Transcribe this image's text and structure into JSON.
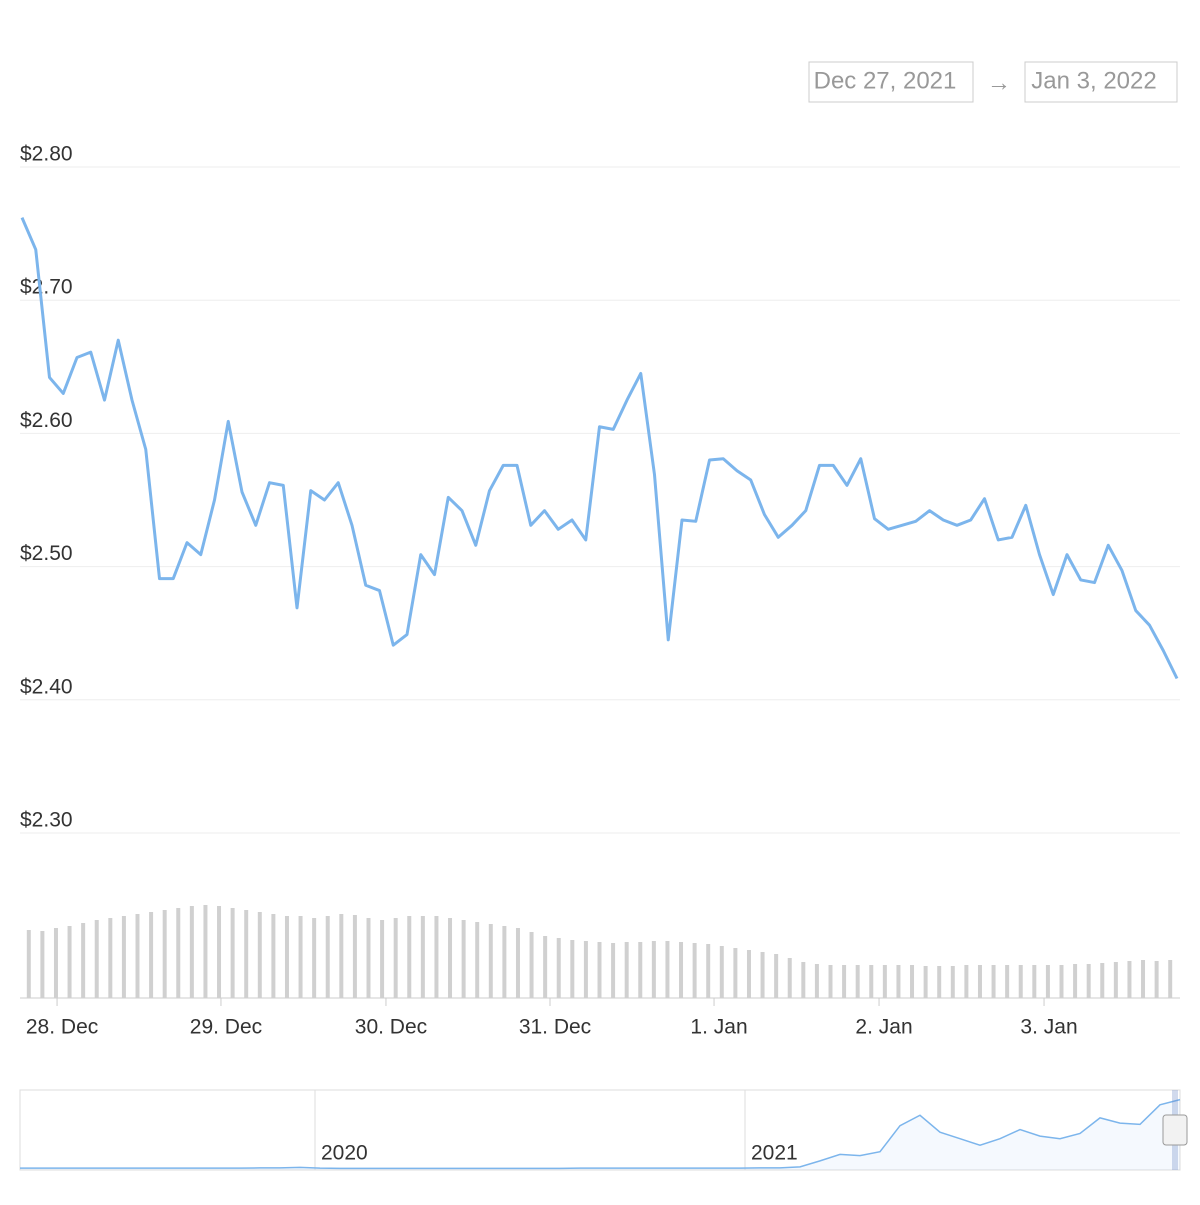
{
  "chart_data": {
    "type": "line",
    "date_from": "Dec 27, 2021",
    "date_arrow": "→",
    "date_to": "Jan 3, 2022",
    "series": [
      {
        "color": "#7cb5ec",
        "values": [
          2.762,
          2.738,
          2.642,
          2.63,
          2.657,
          2.661,
          2.625,
          2.67,
          2.625,
          2.588,
          2.491,
          2.491,
          2.518,
          2.509,
          2.55,
          2.609,
          2.556,
          2.531,
          2.563,
          2.561,
          2.469,
          2.557,
          2.55,
          2.563,
          2.531,
          2.486,
          2.482,
          2.441,
          2.449,
          2.509,
          2.494,
          2.552,
          2.542,
          2.516,
          2.557,
          2.576,
          2.576,
          2.531,
          2.542,
          2.528,
          2.535,
          2.52,
          2.605,
          2.603,
          2.625,
          2.645,
          2.569,
          2.445,
          2.535,
          2.534,
          2.58,
          2.581,
          2.572,
          2.565,
          2.539,
          2.522,
          2.531,
          2.542,
          2.576,
          2.576,
          2.561,
          2.581,
          2.536,
          2.528,
          2.531,
          2.534,
          2.542,
          2.535,
          2.531,
          2.535,
          2.551,
          2.52,
          2.522,
          2.546,
          2.509,
          2.479,
          2.509,
          2.49,
          2.488,
          2.516,
          2.497,
          2.467,
          2.456,
          2.437,
          2.416
        ]
      }
    ],
    "volumes": {
      "color": "#d0d0d0",
      "values": [
        68,
        67,
        70,
        72,
        75,
        78,
        80,
        82,
        84,
        86,
        88,
        90,
        92,
        93,
        92,
        90,
        88,
        86,
        84,
        82,
        82,
        80,
        82,
        84,
        83,
        80,
        78,
        80,
        82,
        82,
        82,
        80,
        78,
        76,
        74,
        72,
        70,
        66,
        62,
        60,
        58,
        57,
        56,
        55,
        56,
        56,
        57,
        57,
        56,
        55,
        54,
        52,
        50,
        48,
        46,
        44,
        40,
        36,
        34,
        33,
        33,
        33,
        33,
        33,
        33,
        33,
        32,
        32,
        32,
        33,
        33,
        33,
        33,
        33,
        33,
        33,
        33,
        34,
        34,
        35,
        36,
        37,
        38,
        37,
        38
      ]
    },
    "xlim": [
      0,
      84
    ],
    "xticks": [
      {
        "value": 2.55,
        "label": "28. Dec"
      },
      {
        "value": 14.47,
        "label": "29. Dec"
      },
      {
        "value": 26.47,
        "label": "30. Dec"
      },
      {
        "value": 38.4,
        "label": "31. Dec"
      },
      {
        "value": 50.33,
        "label": "1. Jan"
      },
      {
        "value": 62.33,
        "label": "2. Jan"
      },
      {
        "value": 74.33,
        "label": "3. Jan"
      }
    ],
    "ylim": [
      2.3,
      2.8
    ],
    "yticks": [
      {
        "value": 2.3,
        "label": "$2.30"
      },
      {
        "value": 2.4,
        "label": "$2.40"
      },
      {
        "value": 2.5,
        "label": "$2.50"
      },
      {
        "value": 2.6,
        "label": "$2.60"
      },
      {
        "value": 2.7,
        "label": "$2.70"
      },
      {
        "value": 2.8,
        "label": "$2.80"
      }
    ],
    "grid": true,
    "navigator": {
      "color": "#7cb5ec",
      "ylim": [
        0,
        2.8
      ],
      "xlim": [
        0,
        58
      ],
      "xticks": [
        {
          "value": 14.75,
          "label": "2020"
        },
        {
          "value": 36.25,
          "label": "2021"
        }
      ],
      "values": [
        0.07,
        0.07,
        0.07,
        0.07,
        0.07,
        0.07,
        0.07,
        0.07,
        0.07,
        0.07,
        0.07,
        0.07,
        0.08,
        0.08,
        0.1,
        0.07,
        0.06,
        0.06,
        0.06,
        0.06,
        0.06,
        0.06,
        0.06,
        0.06,
        0.06,
        0.06,
        0.06,
        0.06,
        0.07,
        0.07,
        0.07,
        0.07,
        0.07,
        0.07,
        0.07,
        0.07,
        0.07,
        0.08,
        0.08,
        0.12,
        0.35,
        0.6,
        0.55,
        0.7,
        1.7,
        2.1,
        1.45,
        1.2,
        0.95,
        1.2,
        1.55,
        1.3,
        1.2,
        1.4,
        2.0,
        1.8,
        1.75,
        2.5,
        2.7
      ]
    }
  }
}
